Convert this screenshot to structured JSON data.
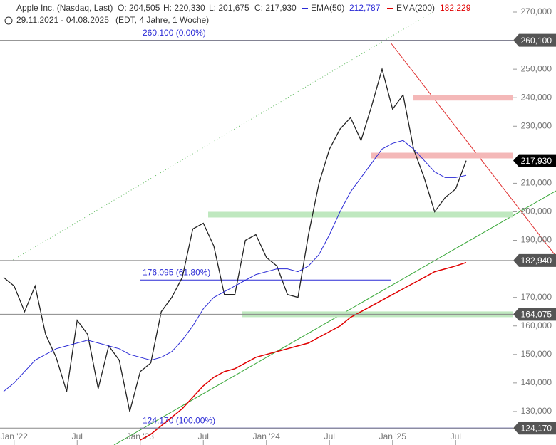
{
  "chart_data": {
    "type": "line",
    "title": "Apple Inc. (Nasdaq, Last)",
    "header": {
      "open": "O: 204,505",
      "high": "H: 220,330",
      "low": "L: 201,675",
      "close": "C: 217,930",
      "ema50_name": "EMA(50)",
      "ema50_value": "212,787",
      "ema200_name": "EMA(200)",
      "ema200_value": "182,229",
      "range": "29.11.2021 - 04.08.2025",
      "info": "(EDT, 4 Jahre, 1 Woche)"
    },
    "x": [
      "2021-12",
      "2022-01",
      "2022-02",
      "2022-03",
      "2022-04",
      "2022-05",
      "2022-06",
      "2022-07",
      "2022-08",
      "2022-09",
      "2022-10",
      "2022-11",
      "2022-12",
      "2023-01",
      "2023-02",
      "2023-03",
      "2023-04",
      "2023-05",
      "2023-06",
      "2023-07",
      "2023-08",
      "2023-09",
      "2023-10",
      "2023-11",
      "2023-12",
      "2024-01",
      "2024-02",
      "2024-03",
      "2024-04",
      "2024-05",
      "2024-06",
      "2024-07",
      "2024-08",
      "2024-09",
      "2024-10",
      "2024-11",
      "2024-12",
      "2025-01",
      "2025-02",
      "2025-03",
      "2025-04",
      "2025-05",
      "2025-06",
      "2025-07",
      "2025-08"
    ],
    "series": [
      {
        "name": "Close",
        "color": "#222222",
        "values": [
          177000,
          174000,
          165000,
          174000,
          157000,
          149000,
          137000,
          162000,
          157000,
          138000,
          153000,
          148000,
          130000,
          144000,
          147000,
          165000,
          170000,
          177000,
          194000,
          196000,
          188000,
          171000,
          171000,
          190000,
          192000,
          184000,
          181000,
          171000,
          170000,
          192000,
          210000,
          222000,
          229000,
          233000,
          225000,
          237000,
          250000,
          236000,
          241000,
          222000,
          212000,
          200000,
          205000,
          208000,
          217930
        ]
      },
      {
        "name": "EMA(50)",
        "color": "#2b2bd6",
        "values": [
          137000,
          140000,
          144000,
          148000,
          150000,
          152000,
          153000,
          154000,
          155000,
          154000,
          153000,
          152000,
          150000,
          149000,
          148000,
          149000,
          151000,
          155000,
          160000,
          166000,
          170000,
          172000,
          174000,
          176000,
          178000,
          179000,
          180000,
          180000,
          179000,
          181000,
          185000,
          192000,
          200000,
          207000,
          212000,
          217000,
          222000,
          224000,
          225000,
          222000,
          218000,
          214000,
          212000,
          212000,
          212787
        ]
      },
      {
        "name": "EMA(200)",
        "color": "#e00000",
        "values": [
          null,
          null,
          null,
          null,
          null,
          null,
          null,
          null,
          null,
          null,
          null,
          null,
          null,
          120000,
          122000,
          125000,
          128000,
          131000,
          135000,
          139000,
          142000,
          144000,
          145000,
          147000,
          149000,
          150000,
          151000,
          152000,
          153000,
          154000,
          156000,
          158000,
          160000,
          163000,
          165000,
          167000,
          169000,
          171000,
          173000,
          175000,
          177000,
          179000,
          180000,
          181000,
          182229
        ]
      }
    ],
    "xticks": [
      {
        "value": "2022-01",
        "label": "Jan '22"
      },
      {
        "value": "2022-07",
        "label": "Jul"
      },
      {
        "value": "2023-01",
        "label": "Jan '23"
      },
      {
        "value": "2023-07",
        "label": "Jul"
      },
      {
        "value": "2024-01",
        "label": "Jan '24"
      },
      {
        "value": "2024-07",
        "label": "Jul"
      },
      {
        "value": "2025-01",
        "label": "Jan '25"
      },
      {
        "value": "2025-07",
        "label": "Jul"
      }
    ],
    "ylim": [
      120000,
      270000
    ],
    "yticks": [
      {
        "value": 270000,
        "label": "270,000"
      },
      {
        "value": 250000,
        "label": "250,000"
      },
      {
        "value": 240000,
        "label": "240,000"
      },
      {
        "value": 230000,
        "label": "230,000"
      },
      {
        "value": 210000,
        "label": "210,000"
      },
      {
        "value": 200000,
        "label": "200,000"
      },
      {
        "value": 190000,
        "label": "190,000"
      },
      {
        "value": 170000,
        "label": "170,000"
      },
      {
        "value": 160000,
        "label": "160,000"
      },
      {
        "value": 150000,
        "label": "150,000"
      },
      {
        "value": 140000,
        "label": "140,000"
      },
      {
        "value": 130000,
        "label": "130,000"
      }
    ],
    "fib_levels": [
      {
        "value": 260100,
        "label": "260,100 (0.00%)"
      },
      {
        "value": 176095,
        "label": "176,095 (61.80%)"
      },
      {
        "value": 124170,
        "label": "124,170 (100.00%)"
      }
    ],
    "price_tags": [
      {
        "value": 260100,
        "label": "260,100"
      },
      {
        "value": 182940,
        "label": "182,940"
      },
      {
        "value": 164075,
        "label": "164,075"
      },
      {
        "value": 124170,
        "label": "124,170"
      },
      {
        "value": 217930,
        "label": "217,930"
      }
    ],
    "zones": [
      {
        "value": 240000,
        "color": "#f4b8b8"
      },
      {
        "value": 219710,
        "color": "#f4b8b8"
      },
      {
        "value": 199000,
        "color": "#bfe8bf"
      },
      {
        "value": 164075,
        "color": "#bfe8bf"
      }
    ],
    "grid": false
  }
}
